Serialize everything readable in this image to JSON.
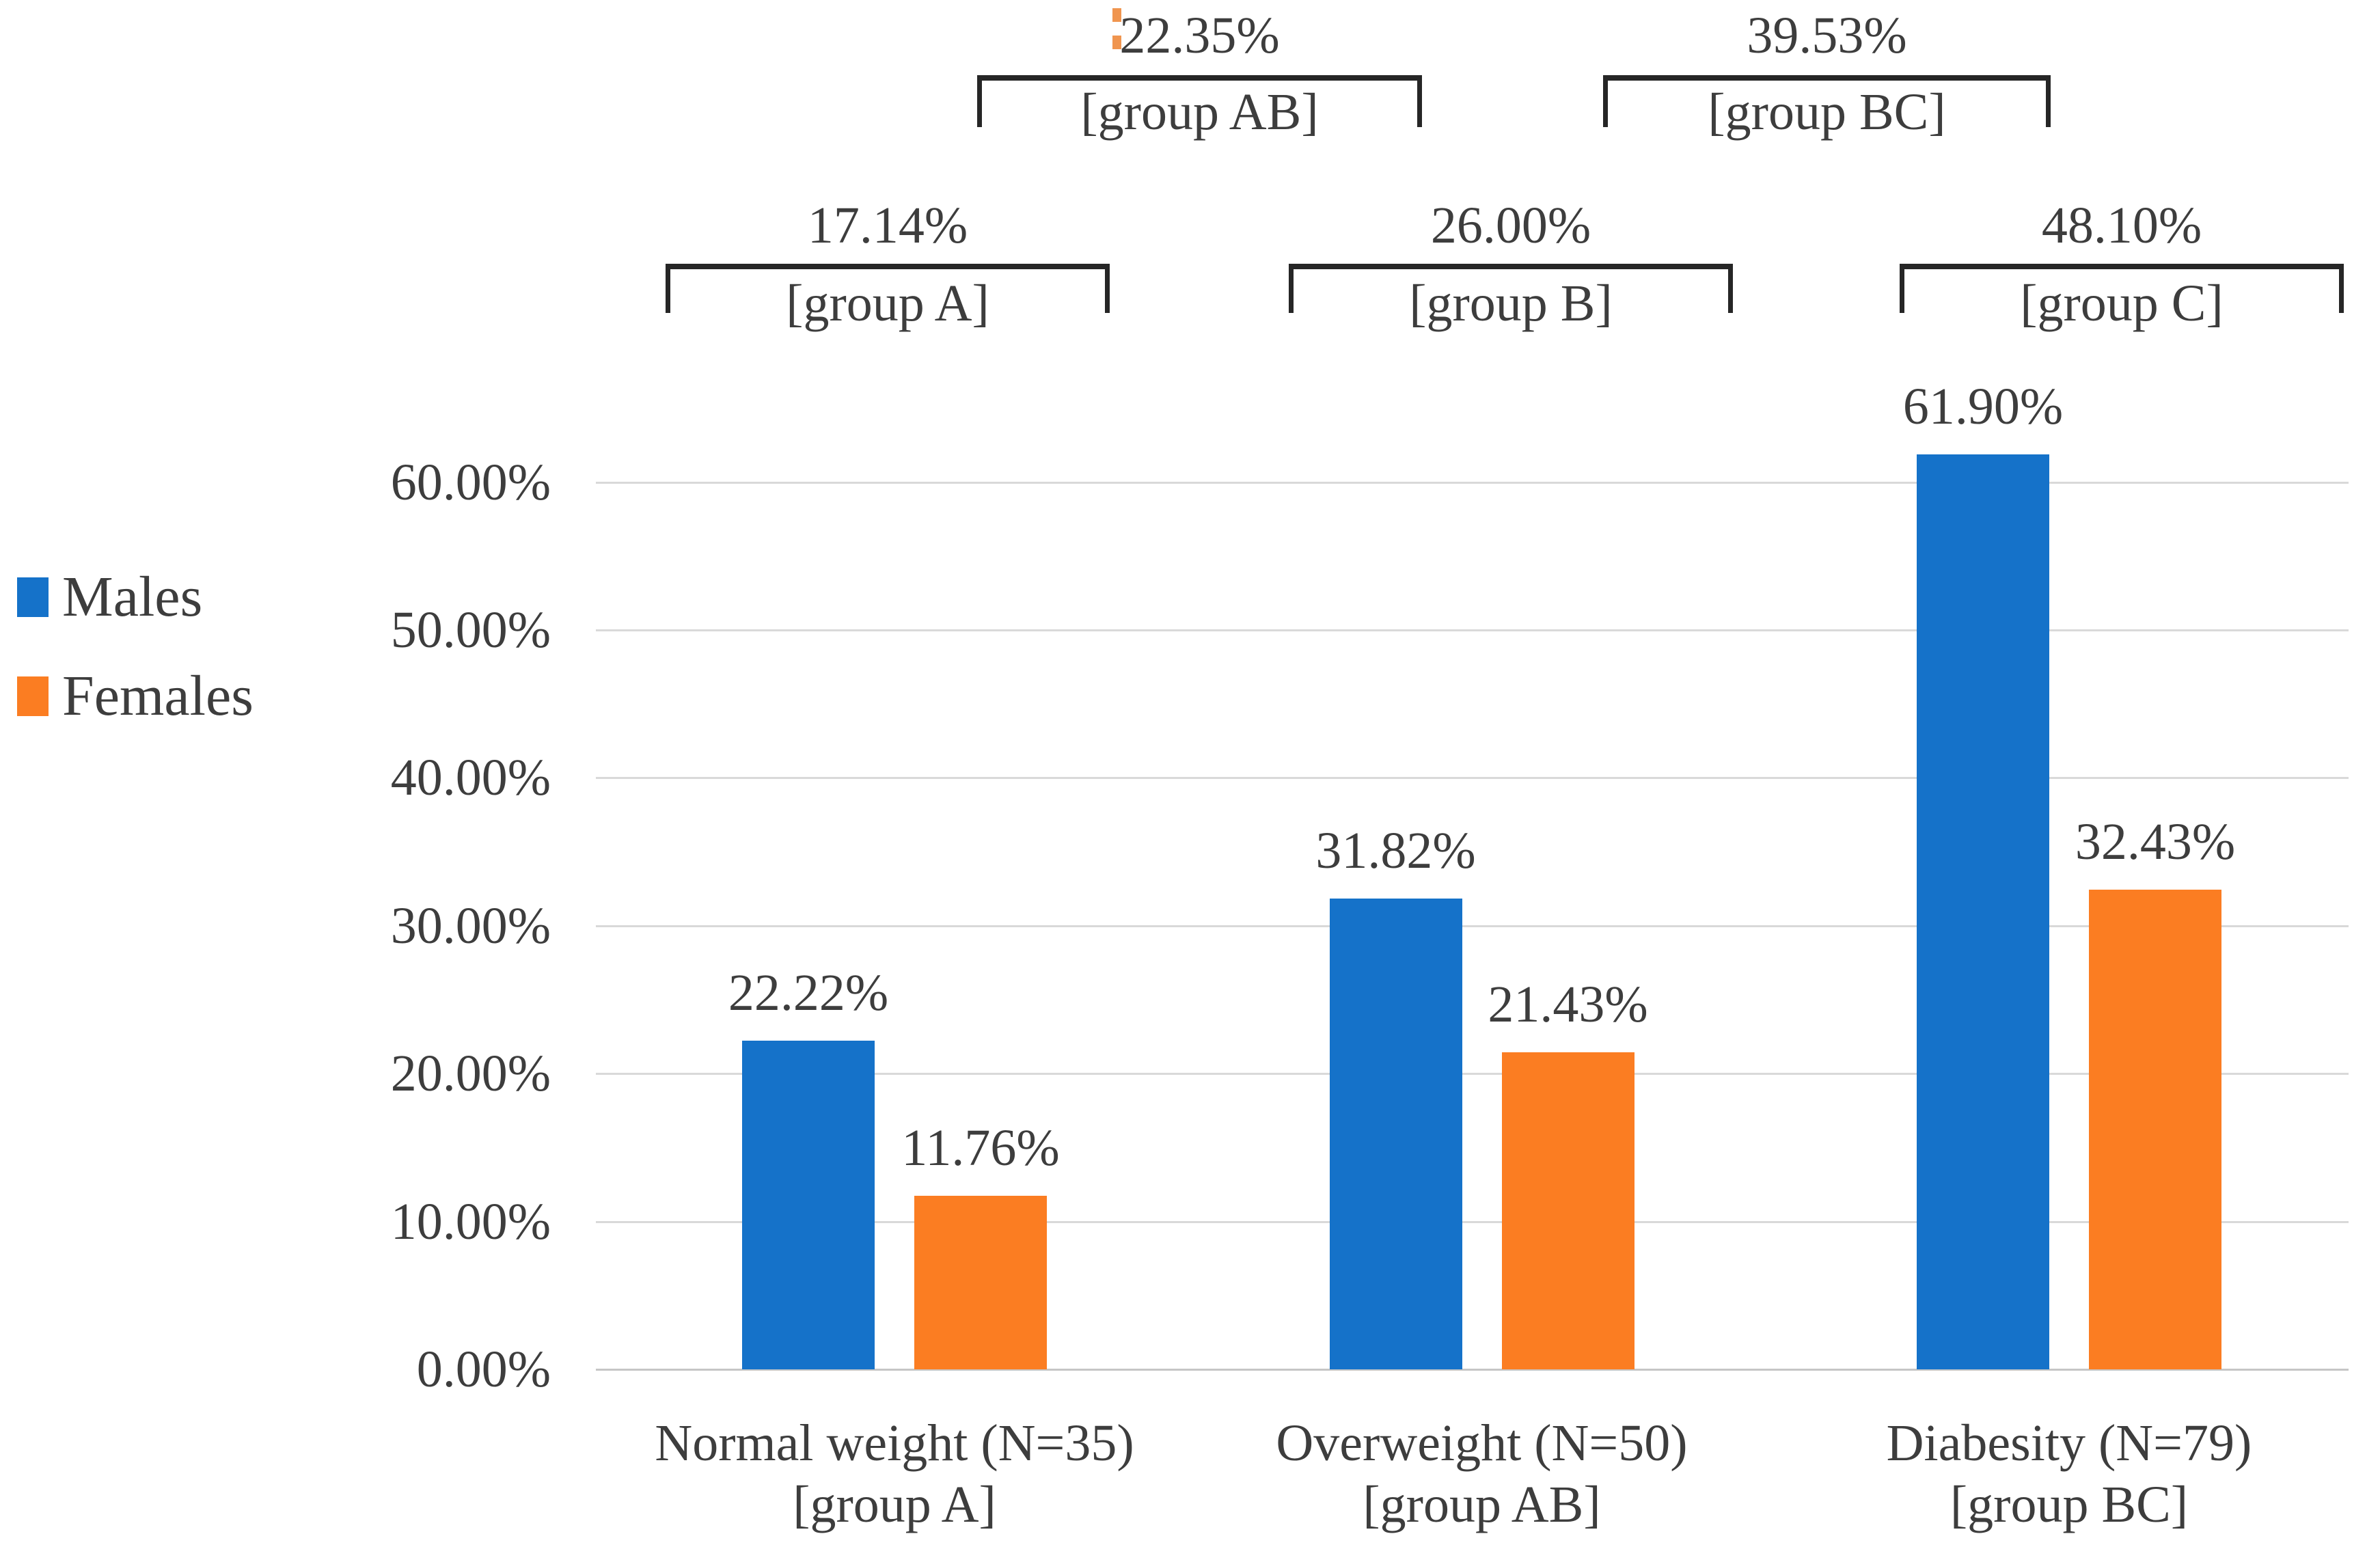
{
  "figure": {
    "background": "#ffffff",
    "text_color": "#3d3d3d",
    "grid_color": "#d9d9d9",
    "axis_line_color": "#c6c6c6",
    "bracket_color": "#262626",
    "artifact_color": "#f0954f"
  },
  "chart_data": {
    "type": "bar",
    "title": "",
    "categories": [
      {
        "line1": "Normal weight (N=35)",
        "line2": "[group A]"
      },
      {
        "line1": "Overweight (N=50)",
        "line2": "[group AB]"
      },
      {
        "line1": "Diabesity (N=79)",
        "line2": "[group BC]"
      }
    ],
    "series": [
      {
        "name": "Males",
        "color": "#1572C9",
        "values": [
          22.22,
          31.82,
          61.9
        ],
        "labels": [
          "22.22%",
          "31.82%",
          "61.90%"
        ]
      },
      {
        "name": "Females",
        "color": "#FB7D22",
        "values": [
          11.76,
          21.43,
          32.43
        ],
        "labels": [
          "11.76%",
          "21.43%",
          "32.43%"
        ]
      }
    ],
    "y_axis": {
      "min": 0,
      "max": 60,
      "step": 10,
      "tick_labels": [
        "0.00%",
        "10.00%",
        "20.00%",
        "30.00%",
        "40.00%",
        "50.00%",
        "60.00%"
      ]
    },
    "comparisons": [
      {
        "id": "A",
        "row": "lower",
        "value": "17.14%",
        "label": "[group A]"
      },
      {
        "id": "B",
        "row": "lower",
        "value": "26.00%",
        "label": "[group B]"
      },
      {
        "id": "C",
        "row": "lower",
        "value": "48.10%",
        "label": "[group C]"
      },
      {
        "id": "AB",
        "row": "upper",
        "value": "22.35%",
        "label": "[group AB]"
      },
      {
        "id": "BC",
        "row": "upper",
        "value": "39.53%",
        "label": "[group BC]"
      }
    ],
    "legend_position": "left",
    "grid": true
  }
}
